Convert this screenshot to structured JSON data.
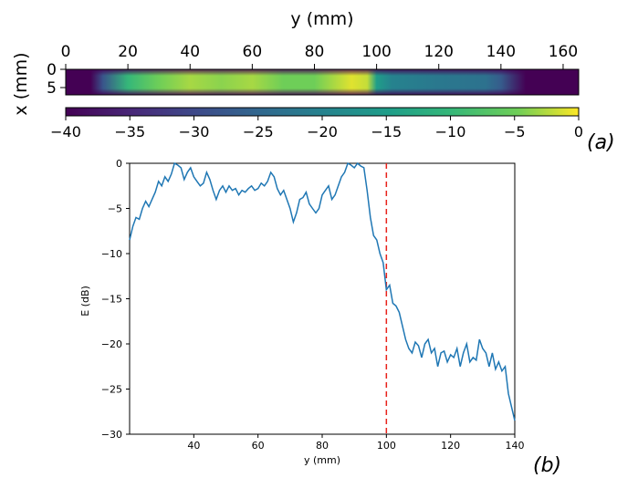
{
  "chart_data": [
    {
      "type": "heatmap",
      "xlabel": "y (mm)",
      "ylabel": "x (mm)",
      "xlim": [
        0,
        165
      ],
      "ylim": [
        0,
        7
      ],
      "xticks": [
        0,
        20,
        40,
        60,
        80,
        100,
        120,
        140,
        160
      ],
      "yticks": [
        0,
        5
      ],
      "colorbar": {
        "label": "",
        "range": [
          -40,
          0
        ],
        "ticks": [
          -40,
          -35,
          -30,
          -25,
          -20,
          -15,
          -10,
          -5,
          0
        ],
        "colormap": "viridis"
      },
      "description_profile": [
        {
          "y": 0,
          "value": -40
        },
        {
          "y": 8,
          "value": -40
        },
        {
          "y": 12,
          "value": -28
        },
        {
          "y": 20,
          "value": -10
        },
        {
          "y": 30,
          "value": -5
        },
        {
          "y": 40,
          "value": -3
        },
        {
          "y": 50,
          "value": -4
        },
        {
          "y": 60,
          "value": -3
        },
        {
          "y": 70,
          "value": -5
        },
        {
          "y": 80,
          "value": -5
        },
        {
          "y": 92,
          "value": -1
        },
        {
          "y": 97,
          "value": -2
        },
        {
          "y": 100,
          "value": -15
        },
        {
          "y": 105,
          "value": -20
        },
        {
          "y": 120,
          "value": -22
        },
        {
          "y": 135,
          "value": -23
        },
        {
          "y": 140,
          "value": -27
        },
        {
          "y": 148,
          "value": -40
        },
        {
          "y": 165,
          "value": -40
        }
      ],
      "panel_label": "(a)"
    },
    {
      "type": "line",
      "xlabel": "y (mm)",
      "ylabel": "E (dB)",
      "xlim": [
        20,
        140
      ],
      "ylim": [
        -30,
        0
      ],
      "xticks": [
        40,
        60,
        80,
        100,
        120,
        140
      ],
      "yticks": [
        0,
        -5,
        -10,
        -15,
        -20,
        -25,
        -30
      ],
      "vline": {
        "x": 100,
        "color": "#e8221b",
        "style": "dashed"
      },
      "series": [
        {
          "color": "#1f77b4",
          "x": [
            20,
            21,
            22,
            23,
            24,
            25,
            26,
            27,
            28,
            29,
            30,
            31,
            32,
            33,
            34,
            35,
            36,
            37,
            38,
            39,
            40,
            41,
            42,
            43,
            44,
            45,
            46,
            47,
            48,
            49,
            50,
            51,
            52,
            53,
            54,
            55,
            56,
            57,
            58,
            59,
            60,
            61,
            62,
            63,
            64,
            65,
            66,
            67,
            68,
            69,
            70,
            71,
            72,
            73,
            74,
            75,
            76,
            77,
            78,
            79,
            80,
            81,
            82,
            83,
            84,
            85,
            86,
            87,
            88,
            89,
            90,
            91,
            92,
            93,
            94,
            95,
            96,
            97,
            98,
            99,
            100,
            101,
            102,
            103,
            104,
            105,
            106,
            107,
            108,
            109,
            110,
            111,
            112,
            113,
            114,
            115,
            116,
            117,
            118,
            119,
            120,
            121,
            122,
            123,
            124,
            125,
            126,
            127,
            128,
            129,
            130,
            131,
            132,
            133,
            134,
            135,
            136,
            137,
            138,
            139,
            140
          ],
          "y": [
            -8.5,
            -7.0,
            -6.0,
            -6.2,
            -5.0,
            -4.2,
            -4.8,
            -4.0,
            -3.2,
            -2.0,
            -2.5,
            -1.5,
            -2.0,
            -1.2,
            0.0,
            -0.2,
            -0.5,
            -1.8,
            -1.0,
            -0.5,
            -1.5,
            -2.0,
            -2.5,
            -2.2,
            -1.0,
            -1.8,
            -3.0,
            -4.0,
            -3.0,
            -2.5,
            -3.2,
            -2.5,
            -3.0,
            -2.8,
            -3.5,
            -3.0,
            -3.2,
            -2.8,
            -2.5,
            -3.0,
            -2.8,
            -2.2,
            -2.5,
            -2.0,
            -1.0,
            -1.5,
            -2.8,
            -3.5,
            -3.0,
            -4.0,
            -5.0,
            -6.5,
            -5.5,
            -4.0,
            -3.8,
            -3.2,
            -4.5,
            -5.0,
            -5.5,
            -5.0,
            -3.5,
            -3.0,
            -2.5,
            -4.0,
            -3.5,
            -2.5,
            -1.5,
            -1.0,
            0.0,
            -0.2,
            -0.5,
            0.0,
            -0.3,
            -0.5,
            -3.0,
            -6.0,
            -8.0,
            -8.5,
            -10.0,
            -11.0,
            -14.0,
            -13.5,
            -15.5,
            -15.8,
            -16.5,
            -18.0,
            -19.5,
            -20.5,
            -21.0,
            -19.8,
            -20.2,
            -21.5,
            -20.0,
            -19.5,
            -21.0,
            -20.5,
            -22.5,
            -21.0,
            -20.8,
            -22.0,
            -21.2,
            -21.5,
            -20.5,
            -22.5,
            -21.0,
            -20.0,
            -22.0,
            -21.5,
            -21.8,
            -19.5,
            -20.5,
            -21.0,
            -22.5,
            -21.0,
            -22.8,
            -22.0,
            -23.0,
            -22.5,
            -25.5,
            -27.0,
            -28.5
          ]
        }
      ],
      "panel_label": "(b)"
    }
  ]
}
